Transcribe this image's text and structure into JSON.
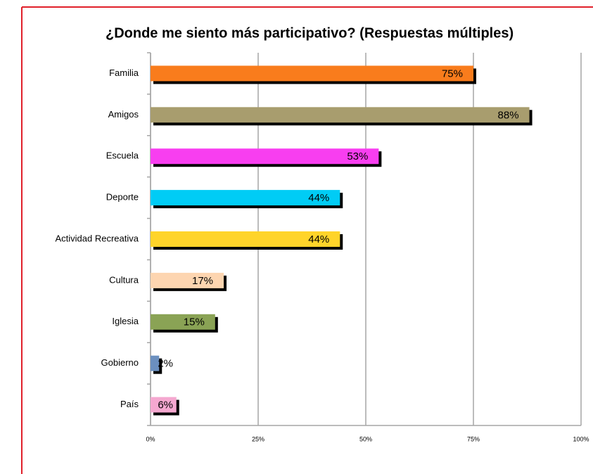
{
  "chart_data": {
    "type": "bar",
    "orientation": "horizontal",
    "title": "¿Donde me siento más participativo? (Respuestas múltiples)",
    "categories": [
      "Familia",
      "Amigos",
      "Escuela",
      "Deporte",
      "Actividad Recreativa",
      "Cultura",
      "Iglesia",
      "Gobierno",
      "País"
    ],
    "values": [
      75,
      88,
      53,
      44,
      44,
      17,
      15,
      2,
      6
    ],
    "value_labels": [
      "75%",
      "88%",
      "53%",
      "44%",
      "44%",
      "17%",
      "15%",
      "2%",
      "6%"
    ],
    "colors": [
      "#f97c1c",
      "#a89d6e",
      "#f83ef0",
      "#00ccf5",
      "#ffd42a",
      "#fdd5b0",
      "#8aa355",
      "#6b8fbf",
      "#f5a8d0"
    ],
    "xlim": [
      0,
      100
    ],
    "xticks": [
      {
        "value": 0,
        "label": "0%"
      },
      {
        "value": 25,
        "label": "25%"
      },
      {
        "value": 50,
        "label": "50%"
      },
      {
        "value": 75,
        "label": "75%"
      },
      {
        "value": 100,
        "label": "100%"
      }
    ],
    "grid": true
  }
}
